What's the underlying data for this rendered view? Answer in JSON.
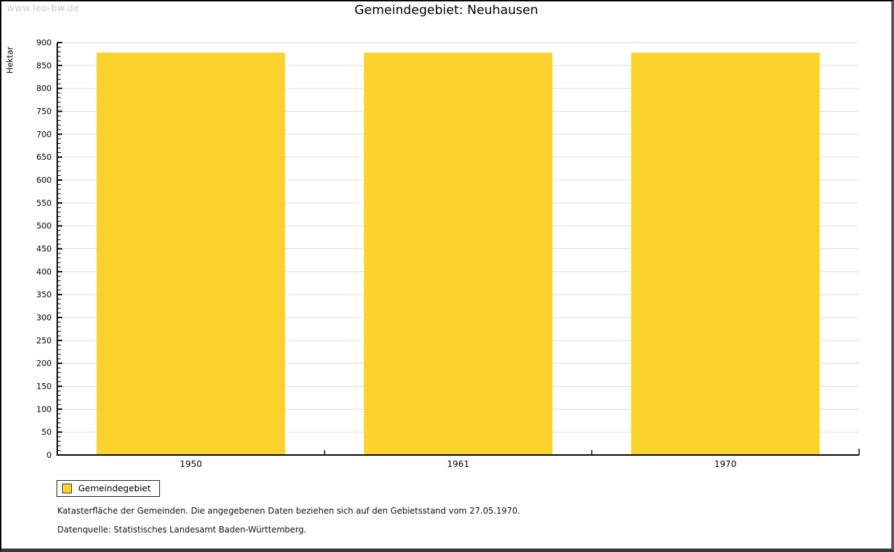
{
  "watermark": "www.leo-bw.de",
  "title": "Gemeindegebiet: Neuhausen",
  "legend": {
    "items": [
      {
        "label": "Gemeindegebiet",
        "color": "#FCD32D"
      }
    ]
  },
  "footnotes": [
    "Katasterfläche der Gemeinden. Die angegebenen Daten beziehen sich auf den Gebietsstand vom 27.05.1970.",
    "Datenquelle: Statistisches Landesamt Baden-Württemberg."
  ],
  "chart_data": {
    "type": "bar",
    "title": "Gemeindegebiet: Neuhausen",
    "categories": [
      "1950",
      "1961",
      "1970"
    ],
    "series": [
      {
        "name": "Gemeindegebiet",
        "values": [
          878,
          878,
          878
        ],
        "color": "#FCD32D"
      }
    ],
    "xlabel": "",
    "ylabel": "Hektar",
    "ylim": [
      0,
      900
    ],
    "ytick_major": 50,
    "ytick_minor": 10,
    "grid": true,
    "grid_color": "#dcdcdc",
    "axis_color": "#000000",
    "legend_position": "bottom-left"
  }
}
